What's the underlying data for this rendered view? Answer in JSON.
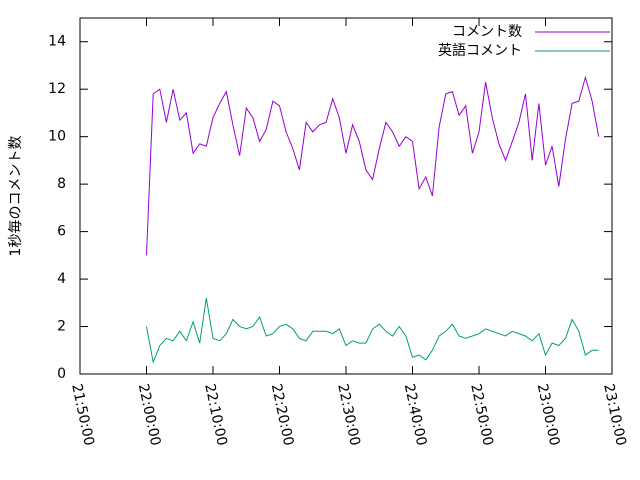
{
  "chart_data": {
    "type": "line",
    "y_label": "1秒毎のコメント数",
    "x": [
      "22:00:00",
      "22:01:00",
      "22:02:00",
      "22:03:00",
      "22:04:00",
      "22:05:00",
      "22:06:00",
      "22:07:00",
      "22:08:00",
      "22:09:00",
      "22:10:00",
      "22:11:00",
      "22:12:00",
      "22:13:00",
      "22:14:00",
      "22:15:00",
      "22:16:00",
      "22:17:00",
      "22:18:00",
      "22:19:00",
      "22:20:00",
      "22:21:00",
      "22:22:00",
      "22:23:00",
      "22:24:00",
      "22:25:00",
      "22:26:00",
      "22:27:00",
      "22:28:00",
      "22:29:00",
      "22:30:00",
      "22:31:00",
      "22:32:00",
      "22:33:00",
      "22:34:00",
      "22:35:00",
      "22:36:00",
      "22:37:00",
      "22:38:00",
      "22:39:00",
      "22:40:00",
      "22:41:00",
      "22:42:00",
      "22:43:00",
      "22:44:00",
      "22:45:00",
      "22:46:00",
      "22:47:00",
      "22:48:00",
      "22:49:00",
      "22:50:00",
      "22:51:00",
      "22:52:00",
      "22:53:00",
      "22:54:00",
      "22:55:00",
      "22:56:00",
      "22:57:00",
      "22:58:00",
      "22:59:00",
      "23:00:00",
      "23:01:00",
      "23:02:00",
      "23:03:00",
      "23:04:00",
      "23:05:00",
      "23:06:00",
      "23:07:00",
      "23:08:00"
    ],
    "series": [
      {
        "name": "コメント数",
        "color": "#9400d3",
        "values": [
          5.0,
          11.8,
          12.0,
          10.6,
          12.0,
          10.7,
          11.0,
          9.3,
          9.7,
          9.6,
          10.8,
          11.4,
          11.9,
          10.5,
          9.2,
          11.2,
          10.8,
          9.8,
          10.3,
          11.5,
          11.3,
          10.2,
          9.5,
          8.6,
          10.6,
          10.2,
          10.5,
          10.6,
          11.6,
          10.8,
          9.3,
          10.5,
          9.8,
          8.6,
          8.2,
          9.5,
          10.6,
          10.2,
          9.6,
          10.0,
          9.8,
          7.8,
          8.3,
          7.5,
          10.4,
          11.8,
          11.9,
          10.9,
          11.3,
          9.3,
          10.2,
          12.3,
          10.8,
          9.7,
          9.0,
          9.8,
          10.6,
          11.8,
          9.0,
          11.4,
          8.8,
          9.6,
          7.9,
          9.9,
          11.4,
          11.5,
          12.5,
          11.5,
          10.0
        ]
      },
      {
        "name": "英語コメント",
        "color": "#009e73",
        "values": [
          2.0,
          0.5,
          1.2,
          1.5,
          1.4,
          1.8,
          1.4,
          2.2,
          1.3,
          3.2,
          1.5,
          1.4,
          1.7,
          2.3,
          2.0,
          1.9,
          2.0,
          2.4,
          1.6,
          1.7,
          2.0,
          2.1,
          1.9,
          1.5,
          1.4,
          1.8,
          1.8,
          1.8,
          1.7,
          1.9,
          1.2,
          1.4,
          1.3,
          1.3,
          1.9,
          2.1,
          1.8,
          1.6,
          2.0,
          1.6,
          0.7,
          0.8,
          0.6,
          1.0,
          1.6,
          1.8,
          2.1,
          1.6,
          1.5,
          1.6,
          1.7,
          1.9,
          1.8,
          1.7,
          1.6,
          1.8,
          1.7,
          1.6,
          1.4,
          1.7,
          0.8,
          1.3,
          1.2,
          1.5,
          2.3,
          1.8,
          0.8,
          1.0,
          1.0
        ]
      }
    ],
    "xlim": [
      "21:50:00",
      "23:10:00"
    ],
    "xticks": [
      "21:50:00",
      "22:00:00",
      "22:10:00",
      "22:20:00",
      "22:30:00",
      "22:40:00",
      "22:50:00",
      "23:00:00",
      "23:10:00"
    ],
    "ylim": [
      0,
      15
    ],
    "yticks": [
      0,
      2,
      4,
      6,
      8,
      10,
      12,
      14
    ],
    "legend": "top-right"
  }
}
